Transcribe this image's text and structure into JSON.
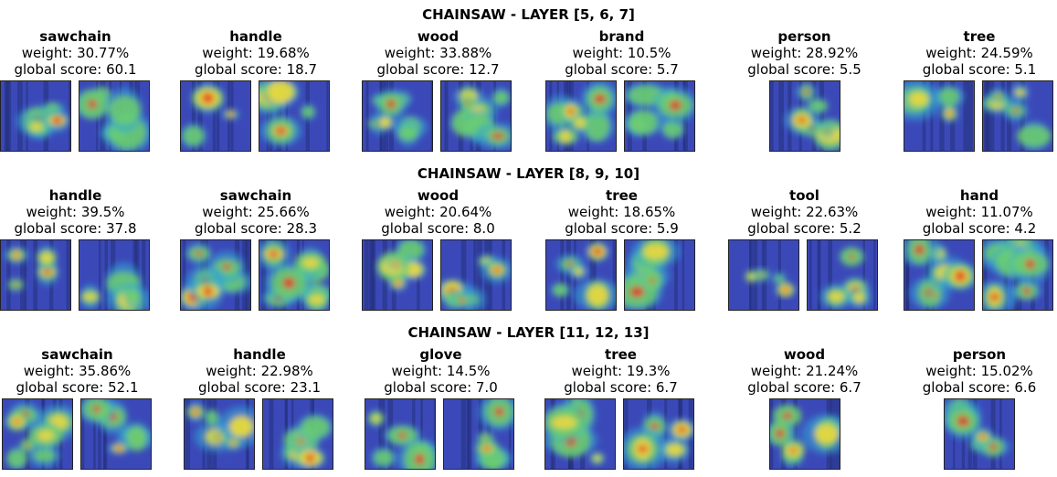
{
  "chart_data": [
    {
      "type": "heatmap",
      "title": "CHAINSAW - LAYER [5, 6, 7]",
      "concepts": [
        {
          "name": "sawchain",
          "weight": "weight: 30.77%",
          "score": "global score: 60.1",
          "images": 2
        },
        {
          "name": "handle",
          "weight": "weight: 19.68%",
          "score": "global score: 18.7",
          "images": 2
        },
        {
          "name": "wood",
          "weight": "weight: 33.88%",
          "score": "global score: 12.7",
          "images": 2
        },
        {
          "name": "brand",
          "weight": "weight: 10.5%",
          "score": "global score: 5.7",
          "images": 2
        },
        {
          "name": "person",
          "weight": "weight: 28.92%",
          "score": "global score: 5.5",
          "images": 1
        },
        {
          "name": "tree",
          "weight": "weight: 24.59%",
          "score": "global score: 5.1",
          "images": 2
        }
      ]
    },
    {
      "type": "heatmap",
      "title": "CHAINSAW - LAYER [8, 9, 10]",
      "concepts": [
        {
          "name": "handle",
          "weight": "weight: 39.5%",
          "score": "global score: 37.8",
          "images": 2
        },
        {
          "name": "sawchain",
          "weight": "weight: 25.66%",
          "score": "global score: 28.3",
          "images": 2
        },
        {
          "name": "wood",
          "weight": "weight: 20.64%",
          "score": "global score: 8.0",
          "images": 2
        },
        {
          "name": "tree",
          "weight": "weight: 18.65%",
          "score": "global score: 5.9",
          "images": 2
        },
        {
          "name": "tool",
          "weight": "weight: 22.63%",
          "score": "global score: 5.2",
          "images": 2
        },
        {
          "name": "hand",
          "weight": "weight: 11.07%",
          "score": "global score: 4.2",
          "images": 2
        }
      ]
    },
    {
      "type": "heatmap",
      "title": "CHAINSAW - LAYER [11, 12, 13]",
      "concepts": [
        {
          "name": "sawchain",
          "weight": "weight: 35.86%",
          "score": "global score: 52.1",
          "images": 2
        },
        {
          "name": "handle",
          "weight": "weight: 22.98%",
          "score": "global score: 23.1",
          "images": 2
        },
        {
          "name": "glove",
          "weight": "weight: 14.5%",
          "score": "global score: 7.0",
          "images": 2
        },
        {
          "name": "tree",
          "weight": "weight: 19.3%",
          "score": "global score: 6.7",
          "images": 2
        },
        {
          "name": "wood",
          "weight": "weight: 21.24%",
          "score": "global score: 6.7",
          "images": 1
        },
        {
          "name": "person",
          "weight": "weight: 15.02%",
          "score": "global score: 6.6",
          "images": 1
        }
      ]
    }
  ],
  "colors": {
    "heat_cold": "#3b49b8",
    "heat_cool": "#2fa6d6",
    "heat_mid": "#6fd06a",
    "heat_warm": "#f4d83a",
    "heat_hot": "#e8321e"
  }
}
